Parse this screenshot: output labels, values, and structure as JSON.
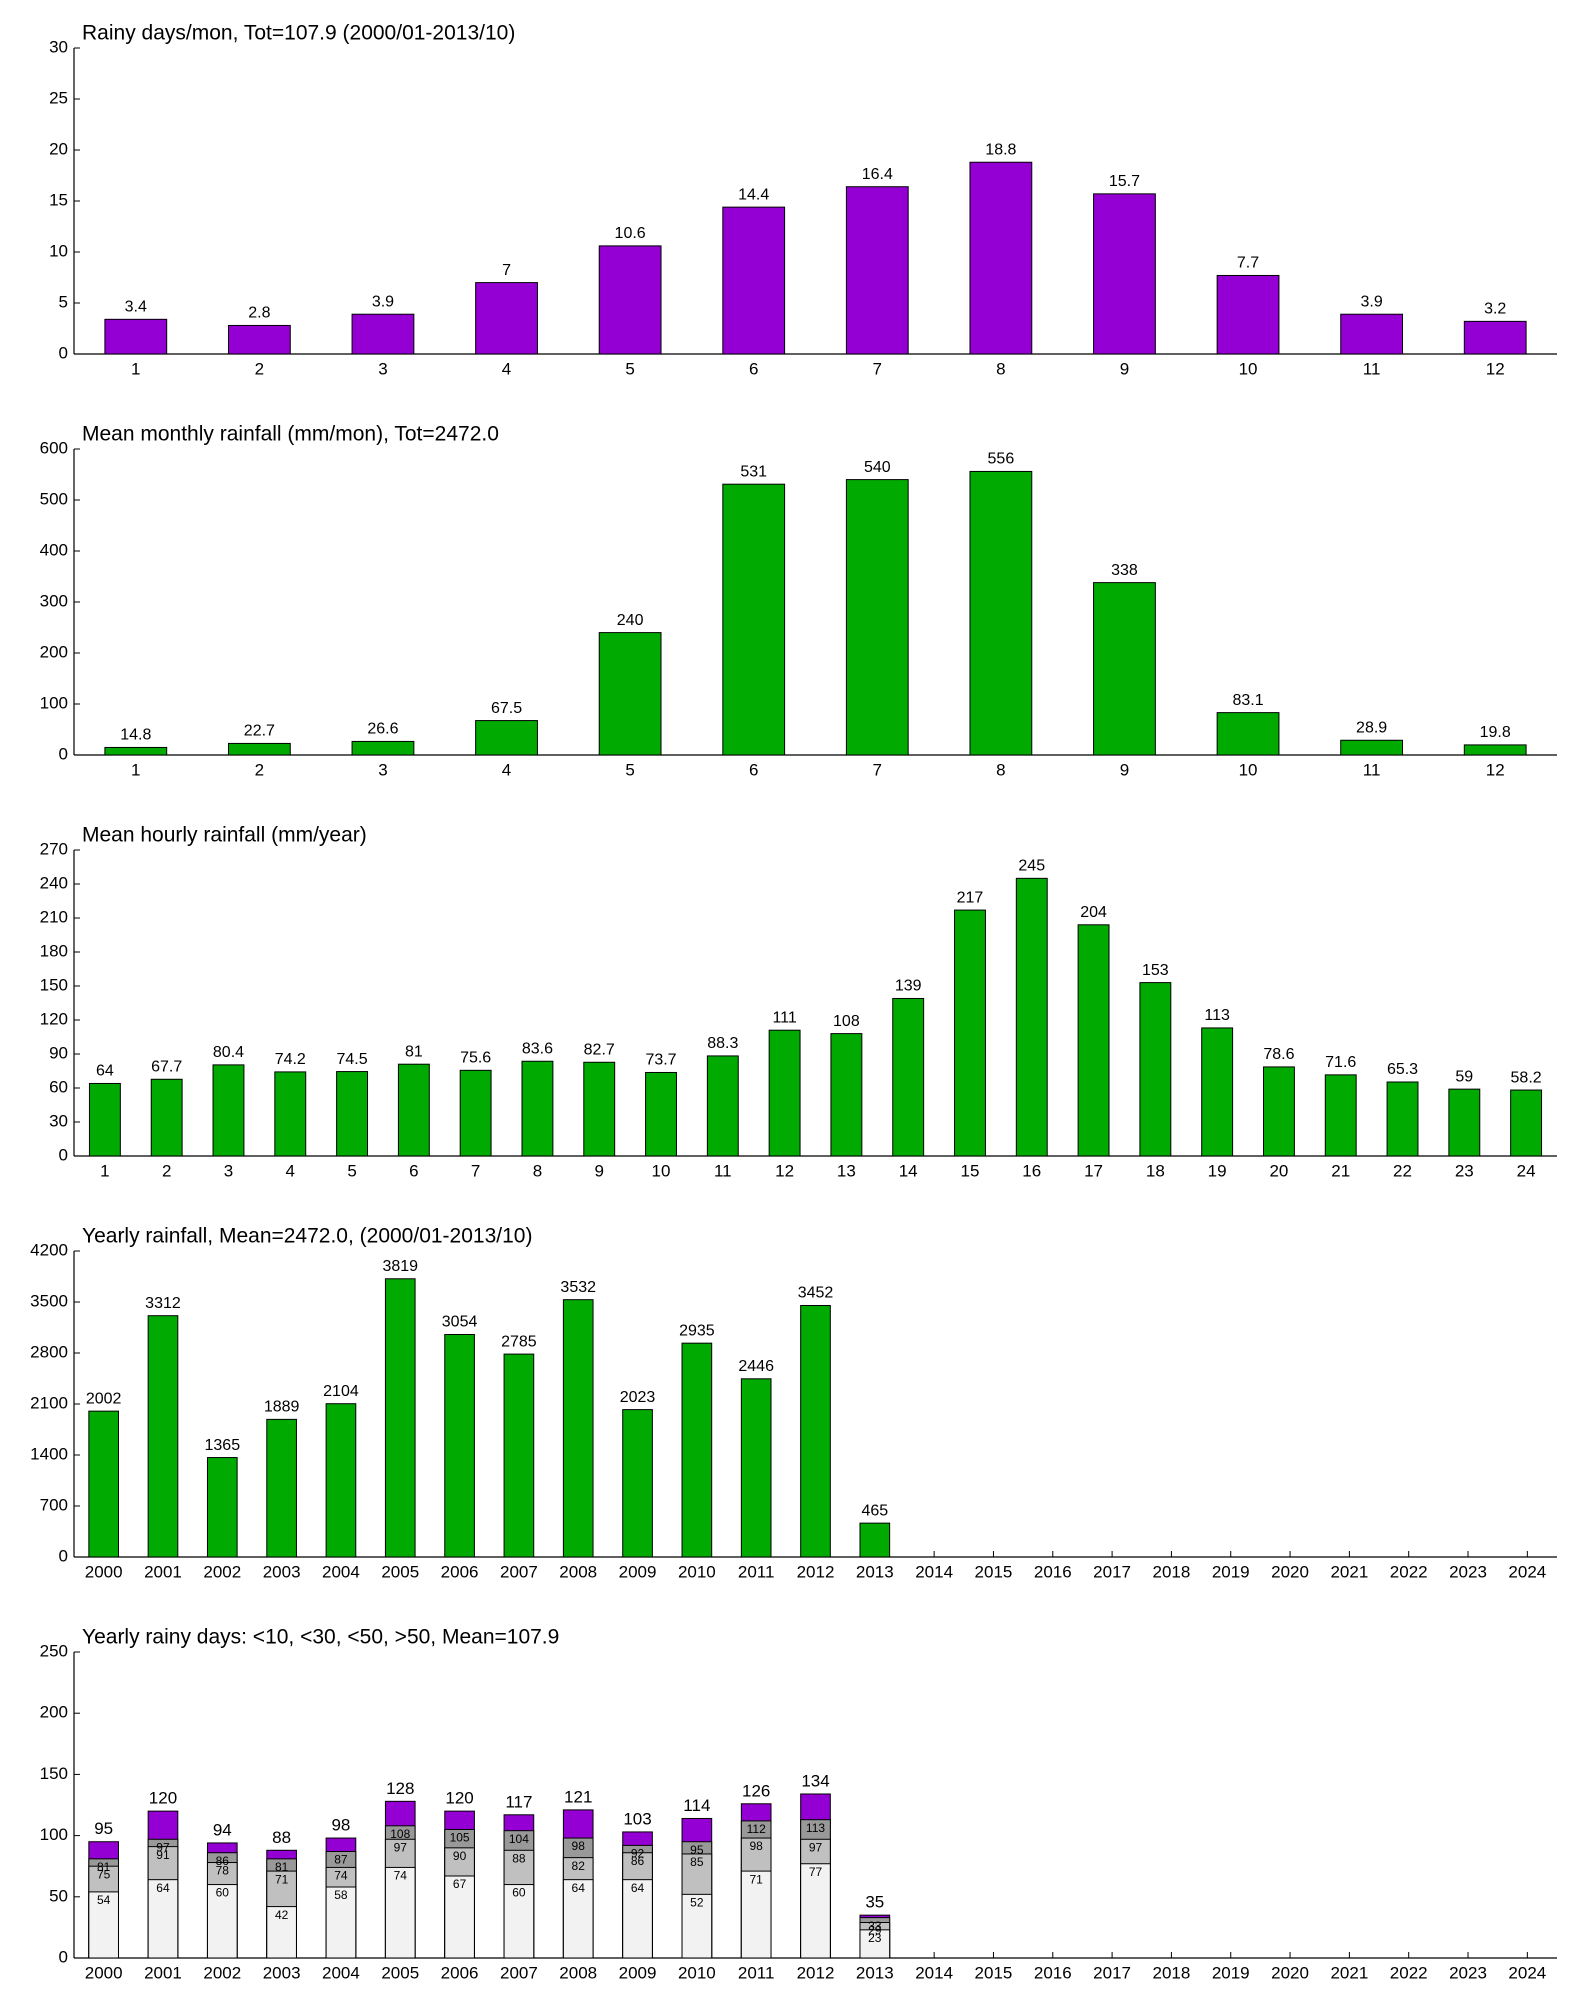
{
  "chart_data": [
    {
      "type": "bar",
      "title": "Rainy days/mon, Tot=107.9 (2000/01-2013/10)",
      "categories": [
        "1",
        "2",
        "3",
        "4",
        "5",
        "6",
        "7",
        "8",
        "9",
        "10",
        "11",
        "12"
      ],
      "values": [
        3.4,
        2.8,
        3.9,
        7,
        10.6,
        14.4,
        16.4,
        18.8,
        15.7,
        7.7,
        3.9,
        3.2
      ],
      "color": "#9400d3",
      "ylim": [
        0,
        30
      ],
      "yticks": [
        0,
        5,
        10,
        15,
        20,
        25,
        30
      ]
    },
    {
      "type": "bar",
      "title": "Mean monthly rainfall (mm/mon), Tot=2472.0",
      "categories": [
        "1",
        "2",
        "3",
        "4",
        "5",
        "6",
        "7",
        "8",
        "9",
        "10",
        "11",
        "12"
      ],
      "values": [
        14.8,
        22.7,
        26.6,
        67.5,
        240,
        531,
        540,
        556,
        338,
        83.1,
        28.9,
        19.8
      ],
      "color": "#00aa00",
      "ylim": [
        0,
        600
      ],
      "yticks": [
        0,
        100,
        200,
        300,
        400,
        500,
        600
      ]
    },
    {
      "type": "bar",
      "title": "Mean hourly rainfall (mm/year)",
      "categories": [
        "1",
        "2",
        "3",
        "4",
        "5",
        "6",
        "7",
        "8",
        "9",
        "10",
        "11",
        "12",
        "13",
        "14",
        "15",
        "16",
        "17",
        "18",
        "19",
        "20",
        "21",
        "22",
        "23",
        "24"
      ],
      "values": [
        64,
        67.7,
        80.4,
        74.2,
        74.5,
        81,
        75.6,
        83.6,
        82.7,
        73.7,
        88.3,
        111,
        108,
        139,
        217,
        245,
        204,
        153,
        113,
        78.6,
        71.6,
        65.3,
        59,
        58.2
      ],
      "color": "#00aa00",
      "ylim": [
        0,
        270
      ],
      "yticks": [
        0,
        30,
        60,
        90,
        120,
        150,
        180,
        210,
        240,
        270
      ]
    },
    {
      "type": "bar",
      "title": "Yearly rainfall, Mean=2472.0, (2000/01-2013/10)",
      "categories": [
        "2000",
        "2001",
        "2002",
        "2003",
        "2004",
        "2005",
        "2006",
        "2007",
        "2008",
        "2009",
        "2010",
        "2011",
        "2012",
        "2013",
        "2014",
        "2015",
        "2016",
        "2017",
        "2018",
        "2019",
        "2020",
        "2021",
        "2022",
        "2023",
        "2024"
      ],
      "values": [
        2002,
        3312,
        1365,
        1889,
        2104,
        3819,
        3054,
        2785,
        3532,
        2023,
        2935,
        2446,
        3452,
        465,
        null,
        null,
        null,
        null,
        null,
        null,
        null,
        null,
        null,
        null,
        null
      ],
      "color": "#00aa00",
      "ylim": [
        0,
        4200
      ],
      "yticks": [
        0,
        700,
        1400,
        2100,
        2800,
        3500,
        4200
      ]
    },
    {
      "type": "bar",
      "barmode": "overlay",
      "title": "Yearly rainy days: <10, <30, <50, >50, Mean=107.9",
      "categories": [
        "2000",
        "2001",
        "2002",
        "2003",
        "2004",
        "2005",
        "2006",
        "2007",
        "2008",
        "2009",
        "2010",
        "2011",
        "2012",
        "2013",
        "2014",
        "2015",
        "2016",
        "2017",
        "2018",
        "2019",
        "2020",
        "2021",
        "2022",
        "2023",
        "2024"
      ],
      "series": [
        {
          "color": "#9400d3",
          "values": [
            95,
            120,
            94,
            88,
            98,
            128,
            120,
            117,
            121,
            103,
            114,
            126,
            134,
            35,
            null,
            null,
            null,
            null,
            null,
            null,
            null,
            null,
            null,
            null,
            null
          ]
        },
        {
          "color": "#999999",
          "values": [
            81,
            97,
            86,
            81,
            87,
            108,
            105,
            104,
            98,
            92,
            95,
            112,
            113,
            33,
            null,
            null,
            null,
            null,
            null,
            null,
            null,
            null,
            null,
            null,
            null
          ]
        },
        {
          "color": "#c0c0c0",
          "values": [
            75,
            91,
            78,
            71,
            74,
            97,
            90,
            88,
            82,
            86,
            85,
            98,
            97,
            29,
            null,
            null,
            null,
            null,
            null,
            null,
            null,
            null,
            null,
            null,
            null
          ]
        },
        {
          "color": "#f2f2f2",
          "values": [
            54,
            64,
            60,
            42,
            58,
            74,
            67,
            60,
            64,
            64,
            52,
            71,
            77,
            23,
            null,
            null,
            null,
            null,
            null,
            null,
            null,
            null,
            null,
            null,
            null
          ]
        }
      ],
      "ylim": [
        0,
        250
      ],
      "yticks": [
        0,
        50,
        100,
        150,
        200,
        250
      ]
    }
  ]
}
